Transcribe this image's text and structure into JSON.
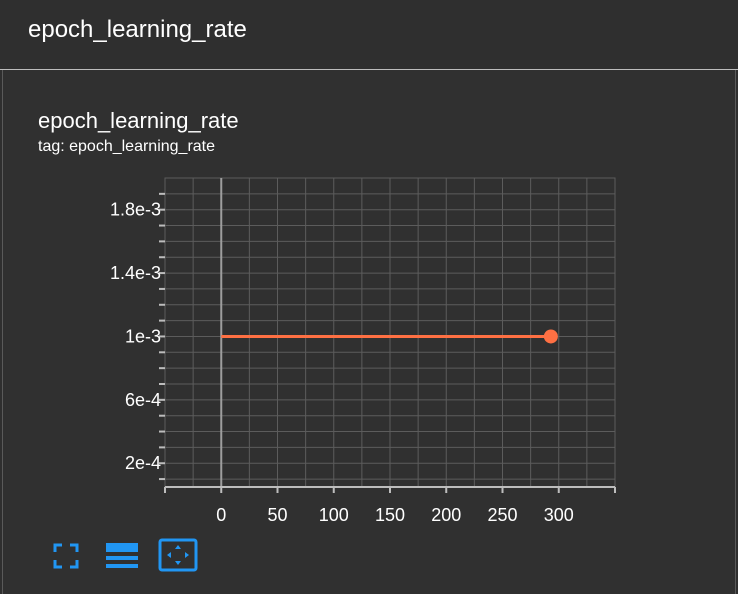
{
  "header": {
    "title": "epoch_learning_rate"
  },
  "card": {
    "title": "epoch_learning_rate",
    "subtitle": "tag: epoch_learning_rate"
  },
  "colors": {
    "series": "#ff7043",
    "accent": "#2196f3",
    "grid": "#5c5c5c",
    "axis": "#9e9e9e"
  },
  "toolbar": {
    "icons": [
      "fullscreen-icon",
      "legend-list-icon",
      "fit-domain-icon"
    ]
  },
  "chart_data": {
    "type": "line",
    "title": "epoch_learning_rate",
    "subtitle": "tag: epoch_learning_rate",
    "xlabel": "",
    "ylabel": "",
    "xlim": [
      -50,
      350
    ],
    "ylim": [
      5e-05,
      0.002
    ],
    "x_ticks": [
      0,
      50,
      100,
      150,
      200,
      250,
      300
    ],
    "x_tick_labels": [
      "0",
      "50",
      "100",
      "150",
      "200",
      "250",
      "300"
    ],
    "y_ticks": [
      0.0002,
      0.0006,
      0.001,
      0.0014,
      0.0018
    ],
    "y_tick_labels": [
      "2e-4",
      "6e-4",
      "1e-3",
      "1.4e-3",
      "1.8e-3"
    ],
    "grid": true,
    "series": [
      {
        "x": [
          0,
          293
        ],
        "y": [
          0.001,
          0.001
        ]
      }
    ]
  }
}
